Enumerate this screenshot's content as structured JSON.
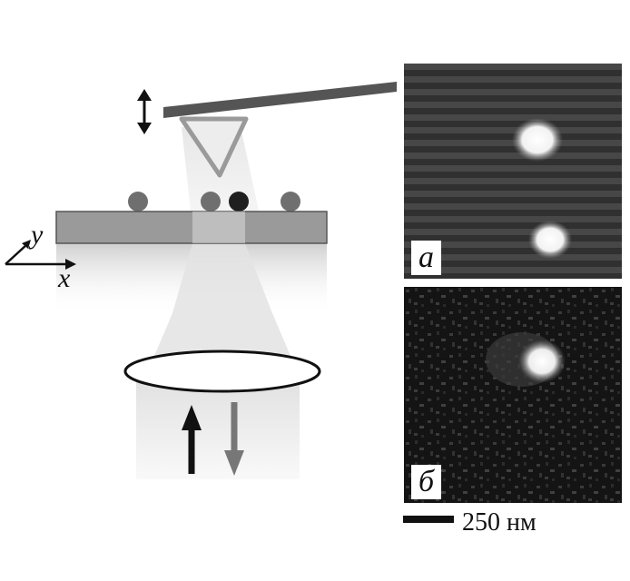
{
  "axes": {
    "x": "x",
    "y": "y"
  },
  "panels": [
    {
      "label": "а"
    },
    {
      "label": "б"
    }
  ],
  "scale_bar": {
    "label": "250 нм"
  }
}
